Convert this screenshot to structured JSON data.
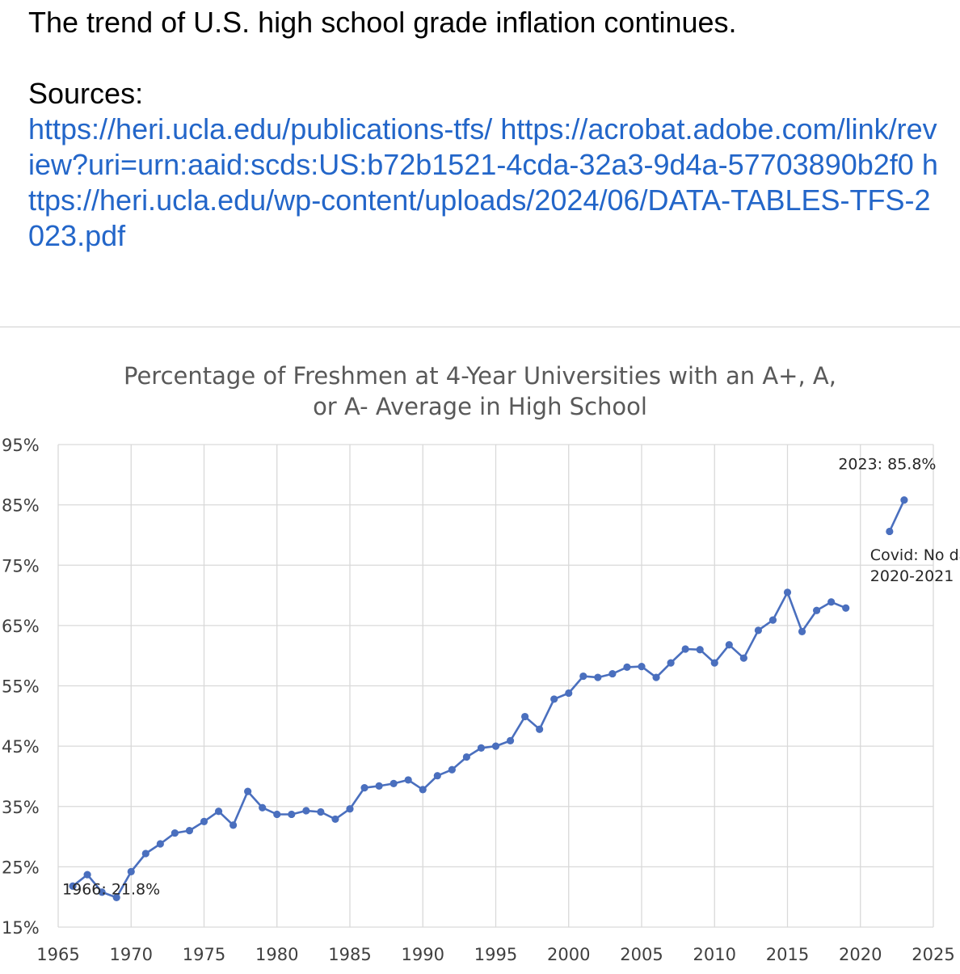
{
  "post": {
    "text": "The trend of U.S. high school grade inflation continues.",
    "sources_label": "Sources:",
    "links": [
      "https://heri.ucla.edu/publications-tfs/",
      "https://acrobat.adobe.com/link/review?uri=urn:aaid:scds:US:b72b1521-4cda-32a3-9d4a-57703890b2f0",
      "https://heri.ucla.edu/wp-content/uploads/2024/06/DATA-TABLES-TFS-2023.pdf"
    ]
  },
  "colors": {
    "series": "#4a6fbe",
    "grid": "#d9d9d9",
    "title": "#595959",
    "link": "#2366c9"
  },
  "chart_data": {
    "type": "line",
    "title_lines": [
      "Percentage of Freshmen at 4-Year Universities with an A+, A,",
      "or A- Average in High School"
    ],
    "xlabel": "",
    "ylabel": "",
    "xlim": [
      1965,
      2025
    ],
    "x_ticks": [
      1965,
      1970,
      1975,
      1980,
      1985,
      1990,
      1995,
      2000,
      2005,
      2010,
      2015,
      2020,
      2025
    ],
    "ylim": [
      15,
      95
    ],
    "y_ticks": [
      "15%",
      "25%",
      "35%",
      "45%",
      "55%",
      "65%",
      "75%",
      "85%",
      "95%"
    ],
    "grid": "vertical and horizontal",
    "legend": "none",
    "series": [
      {
        "segments": [
          {
            "x": [
              1966,
              1967,
              1968,
              1969,
              1970,
              1971,
              1972,
              1973,
              1974,
              1975,
              1976,
              1977,
              1978,
              1979,
              1980,
              1981,
              1982,
              1983,
              1984,
              1985,
              1986,
              1987,
              1988,
              1989,
              1990,
              1991,
              1992,
              1993,
              1994,
              1995,
              1996,
              1997,
              1998,
              1999,
              2000,
              2001,
              2002,
              2003,
              2004,
              2005,
              2006,
              2007,
              2008,
              2009,
              2010,
              2011,
              2012,
              2013,
              2014,
              2015,
              2016,
              2017,
              2018,
              2019
            ],
            "y": [
              21.8,
              23.7,
              20.8,
              19.9,
              24.2,
              27.2,
              28.8,
              30.6,
              31.0,
              32.5,
              34.2,
              31.9,
              37.5,
              34.8,
              33.7,
              33.7,
              34.3,
              34.1,
              32.9,
              34.6,
              38.1,
              38.4,
              38.8,
              39.4,
              37.8,
              40.1,
              41.1,
              43.2,
              44.7,
              45.0,
              45.9,
              49.9,
              47.8,
              52.8,
              53.8,
              56.6,
              56.4,
              57.0,
              58.1,
              58.2,
              56.4,
              58.8,
              61.1,
              61.0,
              58.8,
              61.8,
              59.6,
              64.2,
              65.9,
              70.5,
              64.0,
              67.5,
              68.9,
              67.9
            ]
          },
          {
            "x": [
              2022,
              2023
            ],
            "y": [
              80.6,
              85.8
            ]
          }
        ]
      }
    ],
    "annotations": [
      {
        "text": "1966: 21.8%",
        "x": 1966,
        "y": 21.8
      },
      {
        "text": "2023: 85.8%",
        "x": 2023,
        "y": 85.8
      },
      {
        "text": "Covid: No data",
        "x": 2021,
        "y": 76
      },
      {
        "text": "2020-2021",
        "x": 2021,
        "y": 76
      }
    ]
  }
}
